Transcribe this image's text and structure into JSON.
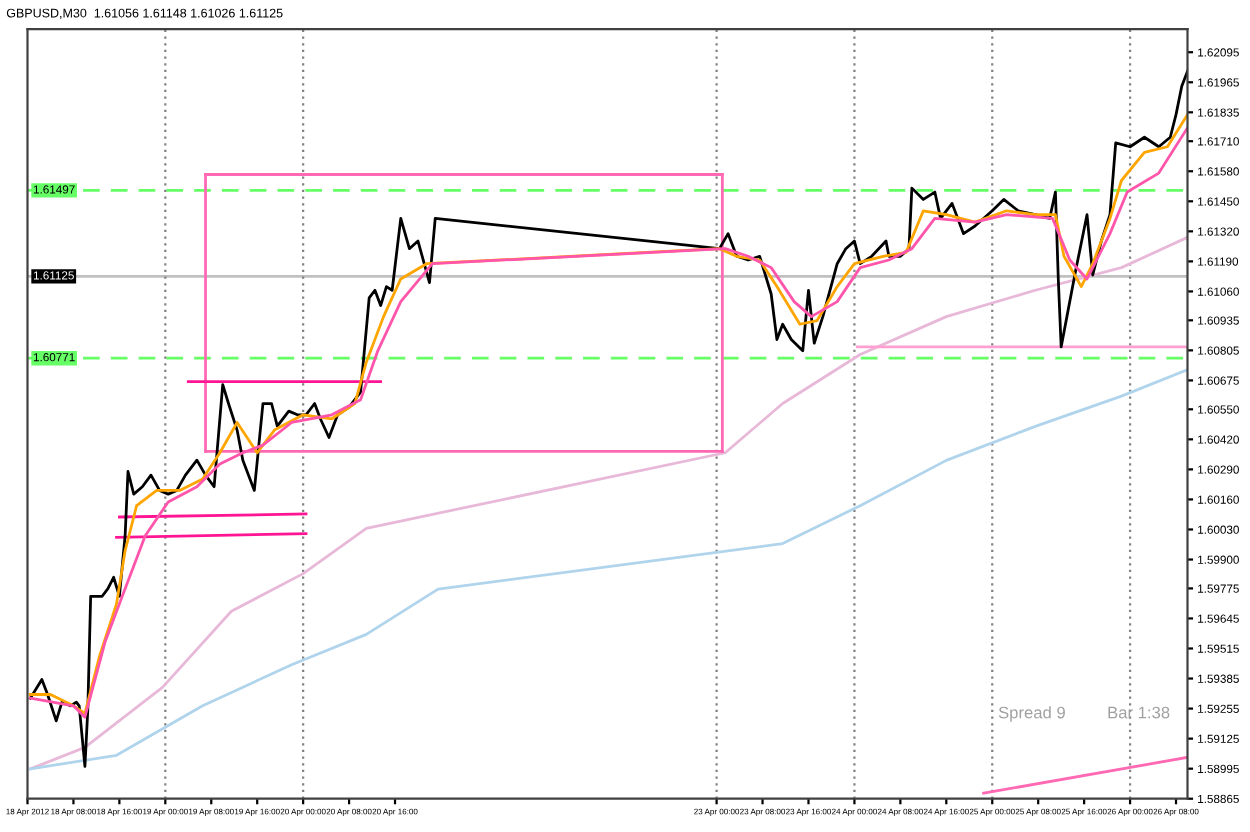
{
  "chart_data": {
    "type": "line",
    "title": "GBPUSD,M30  1.61056 1.61148 1.61026 1.61125",
    "xlim": [
      "2012-04-18T00:00",
      "2012-04-26T10:00"
    ],
    "ylim": [
      1.58865,
      1.62195
    ],
    "xticks": [
      {
        "value": "2012-04-18T00:00",
        "label": "18 Apr 2012"
      },
      {
        "value": "2012-04-18T08:00",
        "label": "18 Apr 08:00"
      },
      {
        "value": "2012-04-18T16:00",
        "label": "18 Apr 16:00"
      },
      {
        "value": "2012-04-19T00:00",
        "label": "19 Apr 00:00"
      },
      {
        "value": "2012-04-19T08:00",
        "label": "19 Apr 08:00"
      },
      {
        "value": "2012-04-19T16:00",
        "label": "19 Apr 16:00"
      },
      {
        "value": "2012-04-20T00:00",
        "label": "20 Apr 00:00"
      },
      {
        "value": "2012-04-20T08:00",
        "label": "20 Apr 08:00"
      },
      {
        "value": "2012-04-20T16:00",
        "label": "20 Apr 16:00"
      },
      {
        "value": "2012-04-23T00:00",
        "label": "23 Apr 00:00"
      },
      {
        "value": "2012-04-23T08:00",
        "label": "23 Apr 08:00"
      },
      {
        "value": "2012-04-23T16:00",
        "label": "23 Apr 16:00"
      },
      {
        "value": "2012-04-24T00:00",
        "label": "24 Apr 00:00"
      },
      {
        "value": "2012-04-24T08:00",
        "label": "24 Apr 08:00"
      },
      {
        "value": "2012-04-24T16:00",
        "label": "24 Apr 16:00"
      },
      {
        "value": "2012-04-25T00:00",
        "label": "25 Apr 00:00"
      },
      {
        "value": "2012-04-25T08:00",
        "label": "25 Apr 08:00"
      },
      {
        "value": "2012-04-25T16:00",
        "label": "25 Apr 16:00"
      },
      {
        "value": "2012-04-26T00:00",
        "label": "26 Apr 00:00"
      },
      {
        "value": "2012-04-26T08:00",
        "label": "26 Apr 08:00"
      }
    ],
    "yticks": [
      1.58865,
      1.58995,
      1.59125,
      1.59255,
      1.59385,
      1.59515,
      1.59645,
      1.59775,
      {
        "value": 1.599,
        "label": "1.59900"
      },
      {
        "value": 1.6003,
        "label": "1.60030"
      },
      {
        "value": 1.6016,
        "label": "1.60160"
      },
      {
        "value": 1.6029,
        "label": "1.60290"
      },
      {
        "value": 1.6042,
        "label": "1.60420"
      },
      {
        "value": 1.6055,
        "label": "1.60550"
      },
      1.60675,
      1.60805,
      1.60935,
      {
        "value": 1.6106,
        "label": "1.61060"
      },
      {
        "value": 1.6119,
        "label": "1.61190"
      },
      {
        "value": 1.6132,
        "label": "1.61320"
      },
      {
        "value": 1.6145,
        "label": "1.61450"
      },
      {
        "value": 1.6158,
        "label": "1.61580"
      },
      {
        "value": 1.6171,
        "label": "1.61710"
      },
      1.61835,
      1.61965,
      1.62095
    ],
    "grid": false,
    "legend": false,
    "line_style": "solid",
    "marker": "none",
    "series": [
      {
        "color": "#e8b8d8",
        "x": [
          "2012-04-18T00:30",
          "2012-04-18T10:00",
          "2012-04-18T23:30",
          "2012-04-19T11:30",
          "2012-04-20T00:00",
          "2012-04-20T11:00",
          "2012-04-23T01:30",
          "2012-04-23T11:30",
          "2012-04-24T01:00",
          "2012-04-24T16:00",
          "2012-04-25T07:30",
          "2012-04-25T22:30",
          "2012-04-26T10:00"
        ],
        "values": [
          1.58994,
          1.59087,
          1.59347,
          1.59676,
          1.59839,
          1.60035,
          1.60362,
          1.60575,
          1.60787,
          1.60951,
          1.61065,
          1.61163,
          1.61294
        ]
      },
      {
        "color": "#b0d4ec",
        "x": [
          "2012-04-18T00:30",
          "2012-04-18T15:30",
          "2012-04-19T06:30",
          "2012-04-19T22:00",
          "2012-04-20T11:00",
          "2012-04-20T23:30",
          "2012-04-23T11:30",
          "2012-04-24T01:00",
          "2012-04-24T16:00",
          "2012-04-25T07:30",
          "2012-04-25T22:30",
          "2012-04-26T10:00"
        ],
        "values": [
          1.58994,
          1.59053,
          1.59267,
          1.59445,
          1.59576,
          1.59772,
          1.59969,
          1.60133,
          1.60329,
          1.60476,
          1.60607,
          1.60721
        ]
      },
      {
        "color": "#ff69b4",
        "x": [
          "2012-04-24T22:30",
          "2012-04-26T10:00"
        ],
        "values": [
          1.58889,
          1.59044
        ]
      },
      {
        "color": "#ff69b4",
        "x": [
          "2012-04-19T07:00",
          "2012-04-23T01:00"
        ],
        "values": [
          1.61566,
          1.61566
        ]
      },
      {
        "color": "#ff69b4",
        "x": [
          "2012-04-19T07:00",
          "2012-04-23T01:00"
        ],
        "values": [
          1.60368,
          1.60368
        ]
      },
      {
        "color": "#ff69b4",
        "x": [
          "2012-04-19T07:00",
          "2012-04-19T07:00"
        ],
        "values": [
          1.60368,
          1.61566
        ]
      },
      {
        "color": "#ff69b4",
        "x": [
          "2012-04-23T01:00",
          "2012-04-23T01:00"
        ],
        "values": [
          1.60368,
          1.61566
        ]
      },
      {
        "color": "#ffa0d0",
        "x": [
          "2012-04-24T00:30",
          "2012-04-26T10:00"
        ],
        "values": [
          1.6082,
          1.6082
        ]
      },
      {
        "color": "#ff1493",
        "x": [
          "2012-04-19T04:00",
          "2012-04-20T13:30"
        ],
        "values": [
          1.6067,
          1.6067
        ]
      },
      {
        "color": "#ff1493",
        "x": [
          "2012-04-18T16:00",
          "2012-04-20T00:30"
        ],
        "values": [
          1.60084,
          1.60097
        ]
      },
      {
        "color": "#ff1493",
        "x": [
          "2012-04-18T15:30",
          "2012-04-20T00:30"
        ],
        "values": [
          1.59996,
          1.60012
        ]
      },
      {
        "color": "#000000",
        "x": [
          "2012-04-18T00:30",
          "2012-04-18T02:30",
          "2012-04-18T03:30",
          "2012-04-18T05:00",
          "2012-04-18T06:00",
          "2012-04-18T07:30",
          "2012-04-18T08:30",
          "2012-04-18T09:00",
          "2012-04-18T10:00",
          "2012-04-18T10:30",
          "2012-04-18T11:00",
          "2012-04-18T13:00",
          "2012-04-18T14:00",
          "2012-04-18T15:00",
          "2012-04-18T16:00",
          "2012-04-18T17:00",
          "2012-04-18T17:30",
          "2012-04-18T18:30",
          "2012-04-18T20:00",
          "2012-04-18T21:30",
          "2012-04-18T23:00",
          "2012-04-19T00:30",
          "2012-04-19T02:00",
          "2012-04-19T03:30",
          "2012-04-19T05:30",
          "2012-04-19T07:00",
          "2012-04-19T08:30",
          "2012-04-19T10:00",
          "2012-04-19T11:00",
          "2012-04-19T12:30",
          "2012-04-19T13:30",
          "2012-04-19T15:30",
          "2012-04-19T17:00",
          "2012-04-19T18:30",
          "2012-04-19T19:30",
          "2012-04-19T21:30",
          "2012-04-19T23:00",
          "2012-04-20T00:30",
          "2012-04-20T02:00",
          "2012-04-20T03:00",
          "2012-04-20T04:30",
          "2012-04-20T06:00",
          "2012-04-20T08:00",
          "2012-04-20T10:00",
          "2012-04-20T11:30",
          "2012-04-20T12:30",
          "2012-04-20T13:30",
          "2012-04-20T14:30",
          "2012-04-20T15:30",
          "2012-04-20T17:00",
          "2012-04-20T18:30",
          "2012-04-20T20:00",
          "2012-04-20T22:00",
          "2012-04-20T23:00",
          "2012-04-23T00:30",
          "2012-04-23T02:00",
          "2012-04-23T03:30",
          "2012-04-23T05:30",
          "2012-04-23T07:30",
          "2012-04-23T09:30",
          "2012-04-23T10:30",
          "2012-04-23T11:30",
          "2012-04-23T13:00",
          "2012-04-23T15:00",
          "2012-04-23T16:00",
          "2012-04-23T17:00",
          "2012-04-23T18:30",
          "2012-04-23T21:00",
          "2012-04-23T22:30",
          "2012-04-24T00:00",
          "2012-04-24T01:00",
          "2012-04-24T03:00",
          "2012-04-24T05:30",
          "2012-04-24T06:00",
          "2012-04-24T08:00",
          "2012-04-24T09:30",
          "2012-04-24T10:00",
          "2012-04-24T12:00",
          "2012-04-24T14:00",
          "2012-04-24T15:00",
          "2012-04-24T17:00",
          "2012-04-24T19:00",
          "2012-04-24T21:00",
          "2012-04-25T00:00",
          "2012-04-25T02:00",
          "2012-04-25T04:30",
          "2012-04-25T07:30",
          "2012-04-25T10:00",
          "2012-04-25T11:00",
          "2012-04-25T11:30",
          "2012-04-25T12:00",
          "2012-04-25T13:00",
          "2012-04-25T14:30",
          "2012-04-25T16:30",
          "2012-04-25T17:30",
          "2012-04-25T19:00",
          "2012-04-25T20:30",
          "2012-04-25T21:30",
          "2012-04-26T00:00",
          "2012-04-26T02:30",
          "2012-04-26T05:00",
          "2012-04-26T07:00",
          "2012-04-26T08:00",
          "2012-04-26T09:00",
          "2012-04-26T10:00"
        ],
        "values": [
          1.593,
          1.59381,
          1.59316,
          1.59202,
          1.59283,
          1.59267,
          1.59283,
          1.59267,
          1.59005,
          1.5925,
          1.59741,
          1.59741,
          1.59774,
          1.59823,
          1.59741,
          1.60003,
          1.60281,
          1.60183,
          1.60215,
          1.60265,
          1.60199,
          1.60183,
          1.60199,
          1.60265,
          1.6033,
          1.60265,
          1.60215,
          1.60657,
          1.60575,
          1.6046,
          1.6033,
          1.60199,
          1.60575,
          1.60575,
          1.60477,
          1.60542,
          1.60526,
          1.60526,
          1.60575,
          1.60509,
          1.60428,
          1.60526,
          1.60559,
          1.60624,
          1.61032,
          1.61065,
          1.60999,
          1.61081,
          1.61065,
          1.61376,
          1.61245,
          1.61278,
          1.61098,
          1.61376,
          1.61245,
          1.6131,
          1.61212,
          1.61196,
          1.61212,
          1.61049,
          1.60852,
          1.60918,
          1.60852,
          1.60803,
          1.61065,
          1.60836,
          1.60951,
          1.6118,
          1.61245,
          1.61278,
          1.6118,
          1.61212,
          1.61278,
          1.61212,
          1.61212,
          1.61245,
          1.61507,
          1.61458,
          1.6149,
          1.61376,
          1.61441,
          1.6131,
          1.61343,
          1.61409,
          1.61458,
          1.61409,
          1.61392,
          1.61376,
          1.6149,
          1.61114,
          1.6082,
          1.60951,
          1.61147,
          1.61392,
          1.61131,
          1.61278,
          1.61392,
          1.61703,
          1.61686,
          1.61727,
          1.61686,
          1.61727,
          1.61825,
          1.61948,
          1.62013
        ]
      },
      {
        "color": "#ffa500",
        "x": [
          "2012-04-18T00:30",
          "2012-04-18T04:00",
          "2012-04-18T08:00",
          "2012-04-18T10:00",
          "2012-04-18T12:30",
          "2012-04-18T15:30",
          "2012-04-18T17:00",
          "2012-04-18T19:00",
          "2012-04-18T22:30",
          "2012-04-19T02:30",
          "2012-04-19T06:30",
          "2012-04-19T09:30",
          "2012-04-19T12:30",
          "2012-04-19T16:00",
          "2012-04-19T19:00",
          "2012-04-20T00:00",
          "2012-04-20T05:00",
          "2012-04-20T09:00",
          "2012-04-20T11:00",
          "2012-04-20T14:00",
          "2012-04-20T17:00",
          "2012-04-20T21:30",
          "2012-04-23T00:30",
          "2012-04-23T03:30",
          "2012-04-23T07:30",
          "2012-04-23T10:30",
          "2012-04-23T14:30",
          "2012-04-23T17:30",
          "2012-04-23T21:00",
          "2012-04-24T00:00",
          "2012-04-24T05:00",
          "2012-04-24T09:00",
          "2012-04-24T12:00",
          "2012-04-24T16:00",
          "2012-04-24T21:00",
          "2012-04-25T02:30",
          "2012-04-25T07:30",
          "2012-04-25T11:00",
          "2012-04-25T12:30",
          "2012-04-25T15:30",
          "2012-04-25T17:30",
          "2012-04-25T20:30",
          "2012-04-25T22:30",
          "2012-04-26T02:30",
          "2012-04-26T06:30",
          "2012-04-26T10:00"
        ],
        "values": [
          1.59316,
          1.59316,
          1.59267,
          1.59234,
          1.59478,
          1.59708,
          1.59938,
          1.60133,
          1.60199,
          1.60199,
          1.60248,
          1.60362,
          1.60493,
          1.60362,
          1.6046,
          1.60526,
          1.60509,
          1.60575,
          1.60754,
          1.60951,
          1.61114,
          1.6118,
          1.61245,
          1.61212,
          1.61196,
          1.61081,
          1.60918,
          1.60934,
          1.61081,
          1.6118,
          1.61212,
          1.61229,
          1.61409,
          1.61392,
          1.6136,
          1.61409,
          1.61392,
          1.61392,
          1.61212,
          1.61081,
          1.6118,
          1.61376,
          1.6154,
          1.61662,
          1.61686,
          1.61825
        ]
      },
      {
        "color": "#ff55aa",
        "x": [
          "2012-04-18T00:30",
          "2012-04-18T08:00",
          "2012-04-18T10:00",
          "2012-04-18T13:30",
          "2012-04-18T16:30",
          "2012-04-18T20:30",
          "2012-04-19T00:30",
          "2012-04-19T05:30",
          "2012-04-19T09:30",
          "2012-04-19T13:30",
          "2012-04-19T17:00",
          "2012-04-19T22:00",
          "2012-04-20T05:00",
          "2012-04-20T10:00",
          "2012-04-20T13:00",
          "2012-04-20T17:00",
          "2012-04-20T22:30",
          "2012-04-23T01:30",
          "2012-04-23T05:30",
          "2012-04-23T09:30",
          "2012-04-23T13:30",
          "2012-04-23T16:30",
          "2012-04-23T21:00",
          "2012-04-24T01:00",
          "2012-04-24T06:00",
          "2012-04-24T10:00",
          "2012-04-24T14:00",
          "2012-04-24T21:00",
          "2012-04-25T02:30",
          "2012-04-25T10:30",
          "2012-04-25T13:30",
          "2012-04-25T16:30",
          "2012-04-25T20:30",
          "2012-04-25T23:30",
          "2012-04-26T05:00",
          "2012-04-26T10:00"
        ],
        "values": [
          1.593,
          1.59267,
          1.59218,
          1.59543,
          1.59741,
          1.60003,
          1.60149,
          1.60215,
          1.60313,
          1.60362,
          1.60395,
          1.60493,
          1.60526,
          1.60591,
          1.60803,
          1.61016,
          1.6118,
          1.61245,
          1.61212,
          1.61163,
          1.61016,
          1.60951,
          1.61016,
          1.61163,
          1.61196,
          1.61245,
          1.61376,
          1.6136,
          1.61392,
          1.61376,
          1.61196,
          1.61114,
          1.6131,
          1.6149,
          1.61572,
          1.61768
        ]
      }
    ],
    "ref_lines": [
      {
        "axis": "y",
        "value": 1.61497,
        "label": "1.61497",
        "color": "#66ff66",
        "line_style": "dashed"
      },
      {
        "axis": "y",
        "value": 1.60771,
        "label": "1.60771",
        "color": "#66ff66",
        "line_style": "dashed"
      },
      {
        "axis": "y",
        "value": 1.61125,
        "label": "1.61125",
        "color": "#c0c0c0",
        "line_style": "solid"
      },
      {
        "axis": "x",
        "value": "2012-04-19T00:00",
        "color": "#808080",
        "line_style": "dotted"
      },
      {
        "axis": "x",
        "value": "2012-04-20T00:00",
        "color": "#808080",
        "line_style": "dotted"
      },
      {
        "axis": "x",
        "value": "2012-04-23T00:00",
        "color": "#808080",
        "line_style": "dotted"
      },
      {
        "axis": "x",
        "value": "2012-04-24T00:00",
        "color": "#808080",
        "line_style": "dotted"
      },
      {
        "axis": "x",
        "value": "2012-04-25T00:00",
        "color": "#808080",
        "line_style": "dotted"
      },
      {
        "axis": "x",
        "value": "2012-04-26T00:00",
        "color": "#808080",
        "line_style": "dotted"
      }
    ],
    "annotations": [
      "Spread 9",
      "Bar 1:38"
    ]
  }
}
